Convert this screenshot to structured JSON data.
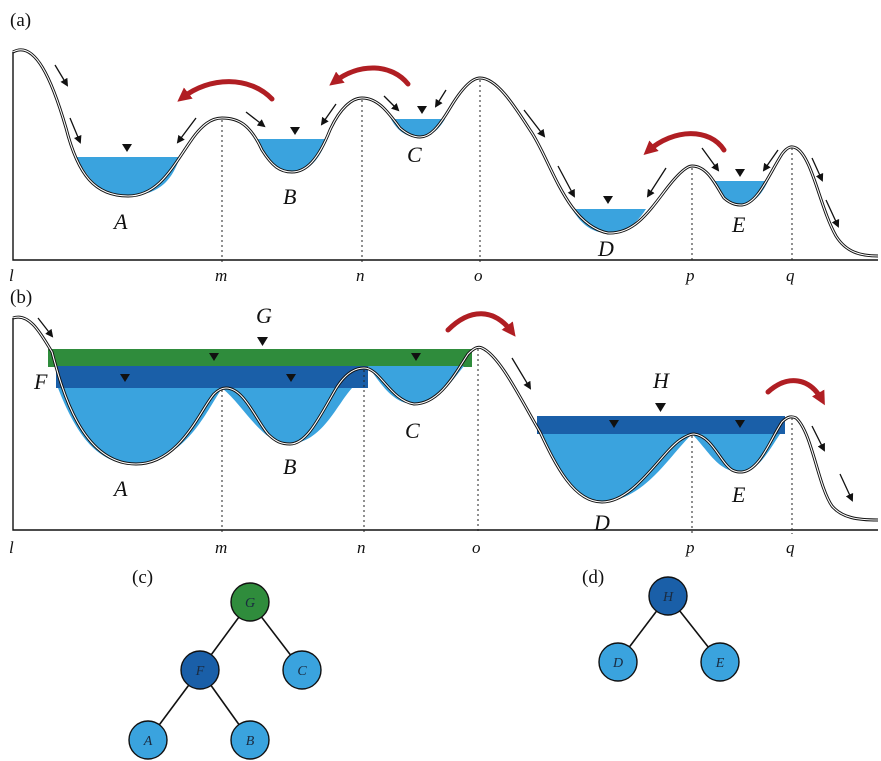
{
  "panels": {
    "a": "(a)",
    "b": "(b)",
    "c": "(c)",
    "d": "(d)"
  },
  "axis_labels": {
    "l": "l",
    "m": "m",
    "n": "n",
    "o": "o",
    "p": "p",
    "q": "q"
  },
  "basins_a": {
    "A": "A",
    "B": "B",
    "C": "C",
    "D": "D",
    "E": "E"
  },
  "basins_b": {
    "A": "A",
    "B": "B",
    "C": "C",
    "D": "D",
    "E": "E",
    "F": "F",
    "G": "G",
    "H": "H"
  },
  "tree_c": {
    "root": "G",
    "mid": "F",
    "right": "C",
    "leaf_left": "A",
    "leaf_right": "B"
  },
  "tree_d": {
    "root": "H",
    "left": "D",
    "right": "E"
  },
  "colors": {
    "water_light": "#3aa3de",
    "water_dark": "#1a5fa8",
    "water_green": "#2f8c3c",
    "overflow_arrow": "#b01e23",
    "line": "#111111"
  }
}
